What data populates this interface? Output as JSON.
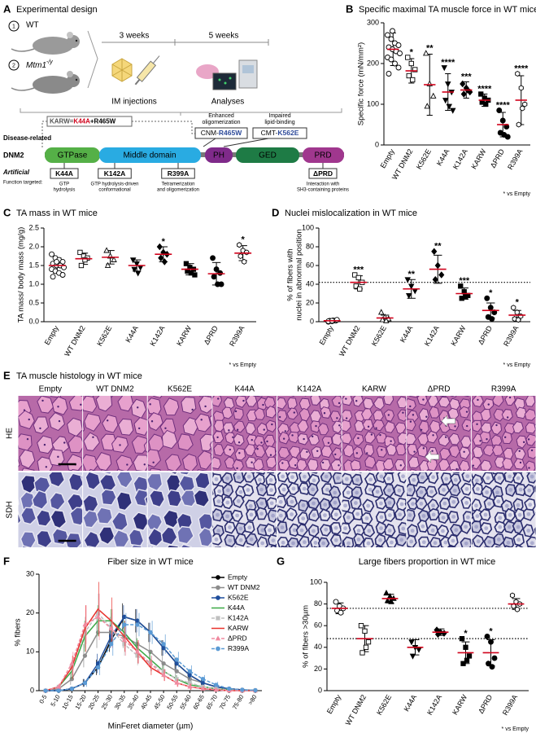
{
  "design": {
    "label": "A",
    "title": "Experimental design",
    "groups": [
      {
        "num": "1",
        "name": "WT"
      },
      {
        "num": "2",
        "name": "Mtm1",
        "sup": "-/y"
      }
    ],
    "timeline": [
      "3 weeks",
      "5 weeks"
    ],
    "steps": [
      "IM injections",
      "Analyses"
    ],
    "disease_label": "Disease-related",
    "karw": [
      "KARW=",
      "K44A",
      "+R465W"
    ],
    "disease": [
      {
        "effect": [
          "Enhanced",
          "oligomerization"
        ],
        "prefix": "CNM-",
        "name": "R465W"
      },
      {
        "effect": [
          "Impaired",
          "lipid-binding"
        ],
        "prefix": "CMT-",
        "name": "K562E"
      }
    ],
    "protein": "DNM2",
    "domains": [
      "GTPase",
      "Middle domain",
      "PH",
      "GED",
      "PRD"
    ],
    "artificial_label": "Artificial",
    "function_label": "Function targeted:",
    "artificial": [
      {
        "name": "K44A",
        "fn": [
          "GTP",
          "hydrolysis"
        ]
      },
      {
        "name": "K142A",
        "fn": [
          "GTP hydrolysis-driven",
          "conformational"
        ]
      },
      {
        "name": "R399A",
        "fn": [
          "Tetramerization",
          "and oligomerization"
        ]
      },
      {
        "name": "ΔPRD",
        "fn": [
          "Interaction with",
          "SH3-containing proteins"
        ]
      }
    ]
  },
  "histology": {
    "label": "E",
    "title": "TA muscle histology in WT mice",
    "columns": [
      "Empty",
      "WT DNM2",
      "K562E",
      "K44A",
      "K142A",
      "KARW",
      "ΔPRD",
      "R399A"
    ],
    "rows": [
      "HE",
      "SDH"
    ]
  },
  "chart_data": [
    {
      "label": "B",
      "type": "dot",
      "title": "Specific maximal TA muscle force in WT mice",
      "ylabel": [
        "Specific force (mN/mm²)"
      ],
      "categories": [
        "Empty",
        "WT DNM2",
        "K562E",
        "K44A",
        "K142A",
        "KARW",
        "ΔPRD",
        "R399A"
      ],
      "points": [
        [
          270,
          260,
          250,
          245,
          240,
          235,
          230,
          225,
          215,
          210,
          200,
          190,
          175,
          280
        ],
        [
          215,
          200,
          185,
          170,
          160
        ],
        [
          225,
          150,
          120,
          95
        ],
        [
          190,
          150,
          130,
          110,
          95,
          85
        ],
        [
          150,
          140,
          130,
          125,
          135
        ],
        [
          125,
          115,
          110,
          105,
          100
        ],
        [
          85,
          60,
          45,
          30,
          25,
          20
        ],
        [
          175,
          140,
          100,
          50,
          90
        ]
      ],
      "means": [
        235,
        182,
        148,
        130,
        135,
        110,
        50,
        110
      ],
      "sd": [
        40,
        30,
        75,
        45,
        20,
        15,
        30,
        60
      ],
      "significance": [
        null,
        "*",
        "**",
        "****",
        "***",
        "****",
        "****",
        "****"
      ],
      "markers": [
        "circle-open",
        "square-open",
        "triangle-open",
        "triangle-down",
        "diamond",
        "square",
        "circle",
        "hexagon-open"
      ],
      "color": "#000000",
      "mean_color": "#d0021b",
      "ylim": [
        0,
        300
      ],
      "yticks": [
        0,
        100,
        200,
        300
      ],
      "note": "* vs Empty"
    },
    {
      "label": "C",
      "type": "dot",
      "title": "TA mass in WT mice",
      "ylabel": [
        "TA mass/ body mass (mg/g)"
      ],
      "categories": [
        "Empty",
        "WT DNM2",
        "K562E",
        "K44A",
        "K142A",
        "KARW",
        "ΔPRD",
        "R399A"
      ],
      "points": [
        [
          1.8,
          1.7,
          1.65,
          1.6,
          1.55,
          1.5,
          1.5,
          1.45,
          1.4,
          1.35,
          1.3,
          1.25,
          1.2,
          1.6
        ],
        [
          1.85,
          1.75,
          1.7,
          1.5,
          1.65
        ],
        [
          1.9,
          1.75,
          1.65,
          1.5
        ],
        [
          1.65,
          1.55,
          1.45,
          1.4,
          1.3
        ],
        [
          2.0,
          1.85,
          1.8,
          1.7,
          1.6
        ],
        [
          1.55,
          1.45,
          1.4,
          1.35,
          1.3,
          1.25
        ],
        [
          1.7,
          1.4,
          1.3,
          1.2,
          1.0,
          1.0
        ],
        [
          2.05,
          1.9,
          1.85,
          1.75,
          1.6
        ]
      ],
      "means": [
        1.5,
        1.68,
        1.72,
        1.5,
        1.8,
        1.4,
        1.28,
        1.83
      ],
      "sd": [
        0.2,
        0.15,
        0.18,
        0.15,
        0.2,
        0.15,
        0.3,
        0.2
      ],
      "significance": [
        null,
        null,
        null,
        null,
        "*",
        null,
        null,
        "*"
      ],
      "markers": [
        "circle-open",
        "square-open",
        "triangle-open",
        "triangle-down",
        "diamond",
        "square",
        "circle",
        "hexagon-open"
      ],
      "color": "#000000",
      "mean_color": "#d0021b",
      "ylim": [
        0,
        2.5
      ],
      "yticks": [
        {
          "value": 0,
          "label": "0.0"
        },
        0.5,
        {
          "value": 1,
          "label": "1.0"
        },
        1.5,
        {
          "value": 2,
          "label": "2.0"
        },
        2.5
      ],
      "note": "* vs Empty"
    },
    {
      "label": "D",
      "type": "dot",
      "title": "Nuclei mislocalization in WT mice",
      "ylabel": [
        "% of fibers with",
        "nuclei in abnormal position"
      ],
      "categories": [
        "Empty",
        "WT DNM2",
        "K562E",
        "K44A",
        "K142A",
        "KARW",
        "ΔPRD",
        "R399A"
      ],
      "points": [
        [
          0,
          0.5,
          1,
          1,
          1.5,
          2,
          0.5,
          1
        ],
        [
          50,
          47,
          42,
          38,
          35
        ],
        [
          10,
          5,
          3,
          2,
          1
        ],
        [
          45,
          38,
          33,
          28
        ],
        [
          75,
          60,
          50,
          45
        ],
        [
          38,
          32,
          28,
          25,
          27
        ],
        [
          25,
          15,
          10,
          5,
          3
        ],
        [
          15,
          10,
          6,
          3,
          2
        ]
      ],
      "means": [
        1,
        42,
        4,
        35,
        56,
        30,
        12,
        7
      ],
      "sd": [
        1,
        7,
        3,
        10,
        15,
        6,
        8,
        5
      ],
      "significance": [
        null,
        "***",
        null,
        "**",
        "**",
        "***",
        "*",
        "*"
      ],
      "markers": [
        "circle-open",
        "square-open",
        "triangle-open",
        "triangle-down",
        "diamond",
        "square",
        "circle",
        "hexagon-open"
      ],
      "color": "#000000",
      "mean_color": "#d0021b",
      "reference_lines": [
        42
      ],
      "ylim": [
        0,
        100
      ],
      "yticks": [
        0,
        20,
        40,
        60,
        80,
        100
      ],
      "note": "* vs Empty"
    },
    {
      "label": "F",
      "type": "line",
      "title": "Fiber size in WT mice",
      "xlabel": "MinFeret diameter (µm)",
      "ylabel": [
        "% fibers"
      ],
      "categories": [
        "0-5",
        "5-10",
        "10-15",
        "15-20",
        "20-25",
        "25-30",
        "30-35",
        "35-40",
        "40-45",
        "45-50",
        "50-55",
        "55-60",
        "60-65",
        "65-70",
        "70-75",
        "75-80",
        ">80"
      ],
      "series": [
        {
          "name": "Empty",
          "color": "#000000",
          "marker": "circle",
          "dash": false,
          "values": [
            0,
            0,
            0.5,
            2,
            6,
            13,
            19,
            18,
            15,
            11,
            7,
            4,
            2,
            1,
            0.5,
            0.2,
            0.1
          ],
          "errors": [
            0,
            0,
            0.3,
            1,
            2,
            3,
            3.5,
            3,
            2.5,
            2,
            1.5,
            1,
            0.8,
            0.5,
            0.3,
            0.2,
            0.1
          ]
        },
        {
          "name": "WT DNM2",
          "color": "#8c8c8c",
          "marker": "circle",
          "dash": false,
          "values": [
            0,
            0.5,
            3,
            9,
            15,
            15,
            14,
            12,
            10,
            7,
            5,
            3,
            2,
            1,
            0.5,
            0.2,
            0.1
          ],
          "errors": [
            0,
            0.3,
            1.5,
            3,
            4,
            4,
            3,
            3,
            2.5,
            2,
            1.5,
            1,
            0.8,
            0.5,
            0.3,
            0.2,
            0.1
          ]
        },
        {
          "name": "K562E",
          "color": "#1f4e9c",
          "marker": "circle",
          "dash": false,
          "values": [
            0,
            0,
            0.5,
            2,
            7,
            14,
            19,
            18,
            15,
            11,
            7,
            4,
            2,
            1,
            0.5,
            0.2,
            0
          ],
          "errors": [
            0,
            0,
            0.3,
            1,
            2.5,
            3,
            3,
            3,
            2.5,
            2,
            1.5,
            1,
            0.8,
            0.5,
            0.3,
            0.2,
            0
          ]
        },
        {
          "name": "K44A",
          "color": "#3aa845",
          "marker": null,
          "dash": false,
          "values": [
            0,
            1,
            5,
            14,
            18,
            18,
            15,
            11,
            8,
            5,
            3,
            1.5,
            1,
            0.5,
            0.2,
            0,
            0
          ],
          "errors": [
            0,
            0.5,
            2,
            4,
            4,
            3,
            3,
            2.5,
            2,
            1.5,
            1,
            0.8,
            0.5,
            0.3,
            0.2,
            0,
            0
          ]
        },
        {
          "name": "K142A",
          "color": "#bfbfbf",
          "marker": "square",
          "dash": true,
          "values": [
            0,
            1,
            6,
            15,
            20,
            16,
            12,
            9,
            7,
            5,
            3,
            2,
            1,
            0.5,
            0.2,
            0,
            0
          ],
          "errors": [
            0,
            0.5,
            2,
            4,
            5,
            4,
            3,
            2.5,
            2,
            1.5,
            1,
            0.8,
            0.5,
            0.3,
            0.2,
            0,
            0
          ]
        },
        {
          "name": "KARW",
          "color": "#e8312c",
          "marker": null,
          "dash": false,
          "values": [
            0,
            1,
            6,
            16,
            21,
            18,
            14,
            10,
            6,
            4,
            2,
            1,
            0.5,
            0.2,
            0,
            0,
            0
          ],
          "errors": [
            0,
            0.8,
            3,
            6,
            7,
            6,
            4,
            3,
            2,
            1.5,
            1,
            0.8,
            0.5,
            0.3,
            0,
            0,
            0
          ]
        },
        {
          "name": "ΔPRD",
          "color": "#f08aa0",
          "marker": "triangle",
          "dash": true,
          "values": [
            0,
            1,
            7,
            17,
            19,
            16,
            13,
            10,
            7,
            4,
            2,
            1,
            0.5,
            0.2,
            0,
            0,
            0
          ],
          "errors": [
            0,
            0.8,
            3,
            5,
            6,
            5,
            4,
            3,
            2,
            1.5,
            1,
            0.8,
            0.5,
            0.3,
            0,
            0,
            0
          ]
        },
        {
          "name": "R399A",
          "color": "#5b9bd5",
          "marker": "circle",
          "dash": true,
          "values": [
            0,
            0,
            0.5,
            2,
            6,
            12,
            17,
            17,
            15,
            12,
            8,
            5,
            3,
            1.5,
            0.5,
            0.2,
            0.1
          ],
          "errors": [
            0,
            0,
            0.3,
            1,
            2,
            3,
            3,
            3,
            3,
            2.5,
            2,
            1.5,
            1,
            0.8,
            0.3,
            0.2,
            0.1
          ]
        }
      ],
      "ylim": [
        0,
        30
      ],
      "yticks": [
        0,
        10,
        20,
        30
      ],
      "legend": "upper right"
    },
    {
      "label": "G",
      "type": "dot",
      "title": "Large fibers proportion in WT mice",
      "ylabel": [
        "% of fibers >30µm"
      ],
      "categories": [
        "Empty",
        "WT DNM2",
        "K562E",
        "K44A",
        "K142A",
        "KARW",
        "ΔPRD",
        "R399A"
      ],
      "points": [
        [
          82,
          78,
          76,
          74,
          72
        ],
        [
          60,
          55,
          45,
          35,
          40
        ],
        [
          90,
          87,
          85,
          83,
          82
        ],
        [
          45,
          40,
          38,
          32
        ],
        [
          56,
          54,
          53,
          52
        ],
        [
          48,
          40,
          32,
          25,
          28
        ],
        [
          50,
          45,
          30,
          25,
          22
        ],
        [
          88,
          82,
          80,
          78,
          75
        ]
      ],
      "means": [
        76,
        48,
        85,
        40,
        54,
        35,
        35,
        80
      ],
      "sd": [
        5,
        12,
        4,
        7,
        3,
        10,
        12,
        5
      ],
      "significance": [
        null,
        null,
        null,
        null,
        null,
        "*",
        "*",
        null
      ],
      "markers": [
        "circle-open",
        "square-open",
        "triangle",
        "triangle-down",
        "diamond",
        "square",
        "circle",
        "hexagon-open"
      ],
      "color": "#000000",
      "mean_color": "#d0021b",
      "reference_lines": [
        76,
        48
      ],
      "ylim": [
        0,
        100
      ],
      "yticks": [
        0,
        20,
        40,
        60,
        80,
        100
      ],
      "note": "* vs Empty"
    }
  ]
}
